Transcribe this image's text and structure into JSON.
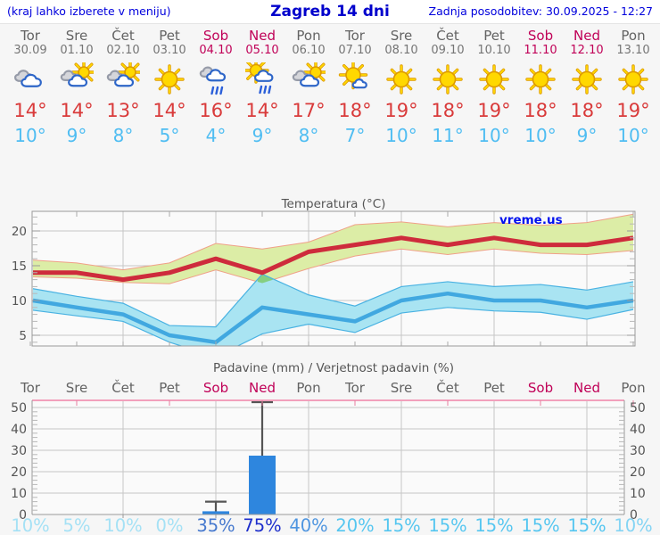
{
  "header": {
    "left_note": "(kraj lahko izberete v meniju)",
    "title": "Zagreb 14 dni",
    "updated": "Zadnja posodobitev: 30.09.2025 - 12:27"
  },
  "colors": {
    "header_text": "#0000dd",
    "day_name": "#636363",
    "weekend": "#c00057",
    "high_temp": "#d93a3a",
    "low_temp": "#4fbdf2",
    "chart_text": "#555555",
    "grid": "#c6c6c6",
    "spine": "#999999",
    "max_line": "#ce2b3c",
    "max_band_fill": "#dceda6",
    "max_band_edge": "#f0a088",
    "min_line": "#41a8e0",
    "min_band_fill": "#a9e4f2",
    "min_band_edge": "#49b2e2",
    "band_overlap": "#85cf82",
    "bar_fill": "#2e86de",
    "whisker": "#555555",
    "precip_top_border": "#f2a0bc",
    "watermark": "#0010ee"
  },
  "days": [
    {
      "name": "Tor",
      "date": "30.09",
      "weekend": false,
      "icon": "cloudy",
      "high": "14°",
      "low": "10°"
    },
    {
      "name": "Sre",
      "date": "01.10",
      "weekend": false,
      "icon": "partly",
      "high": "14°",
      "low": "9°"
    },
    {
      "name": "Čet",
      "date": "02.10",
      "weekend": false,
      "icon": "partly",
      "high": "13°",
      "low": "8°"
    },
    {
      "name": "Pet",
      "date": "03.10",
      "weekend": false,
      "icon": "sunny",
      "high": "14°",
      "low": "5°"
    },
    {
      "name": "Sob",
      "date": "04.10",
      "weekend": true,
      "icon": "rain",
      "high": "16°",
      "low": "4°"
    },
    {
      "name": "Ned",
      "date": "05.10",
      "weekend": true,
      "icon": "sun-rain",
      "high": "14°",
      "low": "9°"
    },
    {
      "name": "Pon",
      "date": "06.10",
      "weekend": false,
      "icon": "partly",
      "high": "17°",
      "low": "8°"
    },
    {
      "name": "Tor",
      "date": "07.10",
      "weekend": false,
      "icon": "mostly-sunny",
      "high": "18°",
      "low": "7°"
    },
    {
      "name": "Sre",
      "date": "08.10",
      "weekend": false,
      "icon": "sunny",
      "high": "19°",
      "low": "10°"
    },
    {
      "name": "Čet",
      "date": "09.10",
      "weekend": false,
      "icon": "sunny",
      "high": "18°",
      "low": "11°"
    },
    {
      "name": "Pet",
      "date": "10.10",
      "weekend": false,
      "icon": "sunny",
      "high": "19°",
      "low": "10°"
    },
    {
      "name": "Sob",
      "date": "11.10",
      "weekend": true,
      "icon": "sunny",
      "high": "18°",
      "low": "10°"
    },
    {
      "name": "Ned",
      "date": "12.10",
      "weekend": true,
      "icon": "sunny",
      "high": "18°",
      "low": "9°"
    },
    {
      "name": "Pon",
      "date": "13.10",
      "weekend": false,
      "icon": "sunny",
      "high": "19°",
      "low": "10°"
    }
  ],
  "chart_data": [
    {
      "type": "line",
      "title": "Temperatura (°C)",
      "watermark": "vreme.us",
      "categories": [
        "Tor",
        "Sre",
        "Čet",
        "Pet",
        "Sob",
        "Ned",
        "Pon",
        "Tor",
        "Sre",
        "Čet",
        "Pet",
        "Sob",
        "Ned",
        "Pon"
      ],
      "yticks": [
        5,
        10,
        15,
        20
      ],
      "ylim": [
        3.3,
        22.8
      ],
      "legend_position": "none",
      "grid": true,
      "series": [
        {
          "name": "max-temperature",
          "values": [
            14,
            14,
            13,
            14,
            16,
            14,
            17,
            18,
            19,
            18,
            19,
            18,
            18,
            19
          ]
        },
        {
          "name": "min-temperature",
          "values": [
            10,
            9,
            8,
            5,
            4,
            9,
            8,
            7,
            10,
            11,
            10,
            10,
            9,
            10
          ]
        }
      ],
      "bands": [
        {
          "name": "max-range",
          "upper": [
            15.8,
            15.4,
            14.4,
            15.4,
            18.2,
            17.4,
            18.4,
            20.9,
            21.3,
            20.6,
            21.2,
            20.8,
            21.2,
            22.4
          ],
          "lower": [
            13.4,
            13.2,
            12.6,
            12.4,
            14.4,
            12.5,
            14.6,
            16.4,
            17.4,
            16.6,
            17.4,
            16.8,
            16.6,
            17.2
          ]
        },
        {
          "name": "min-range",
          "upper": [
            11.7,
            10.6,
            9.6,
            6.4,
            6.2,
            13.8,
            10.8,
            9.2,
            12.0,
            12.7,
            12.0,
            12.3,
            11.5,
            12.7
          ],
          "lower": [
            8.6,
            7.8,
            7.0,
            4.0,
            1.9,
            5.2,
            6.6,
            5.4,
            8.2,
            9.0,
            8.5,
            8.3,
            7.3,
            8.7
          ]
        }
      ]
    },
    {
      "type": "bar",
      "title": "Padavine (mm) / Verjetnost padavin (%)",
      "categories": [
        "Tor",
        "Sre",
        "Čet",
        "Pet",
        "Sob",
        "Ned",
        "Pon",
        "Tor",
        "Sre",
        "Čet",
        "Pet",
        "Sob",
        "Ned",
        "Pon"
      ],
      "weekend_flags": [
        false,
        false,
        false,
        false,
        true,
        true,
        false,
        false,
        false,
        false,
        false,
        true,
        true,
        false
      ],
      "values": [
        0,
        0,
        0,
        0,
        1.5,
        27.5,
        0,
        0,
        0,
        0,
        0,
        0,
        0,
        0
      ],
      "whisker_high": [
        null,
        null,
        null,
        null,
        6,
        52.5,
        null,
        null,
        null,
        null,
        null,
        null,
        null,
        null
      ],
      "whisker_low": [
        null,
        null,
        null,
        null,
        0,
        3.5,
        null,
        null,
        null,
        null,
        null,
        null,
        null,
        null
      ],
      "yticks": [
        0,
        10,
        20,
        30,
        40,
        50
      ],
      "ylim": [
        0,
        53
      ],
      "grid": true,
      "probabilities": [
        {
          "label": "10%",
          "color": "#a5e1f5"
        },
        {
          "label": "5%",
          "color": "#a5e1f5"
        },
        {
          "label": "10%",
          "color": "#a5e1f5"
        },
        {
          "label": "0%",
          "color": "#a5e1f5"
        },
        {
          "label": "35%",
          "color": "#4679ce"
        },
        {
          "label": "75%",
          "color": "#1d2ecc"
        },
        {
          "label": "40%",
          "color": "#4e95e0"
        },
        {
          "label": "20%",
          "color": "#55c6f0"
        },
        {
          "label": "15%",
          "color": "#55c6f0"
        },
        {
          "label": "15%",
          "color": "#55c6f0"
        },
        {
          "label": "15%",
          "color": "#55c6f0"
        },
        {
          "label": "15%",
          "color": "#55c6f0"
        },
        {
          "label": "15%",
          "color": "#55c6f0"
        },
        {
          "label": "10%",
          "color": "#84d4f4"
        }
      ]
    }
  ]
}
